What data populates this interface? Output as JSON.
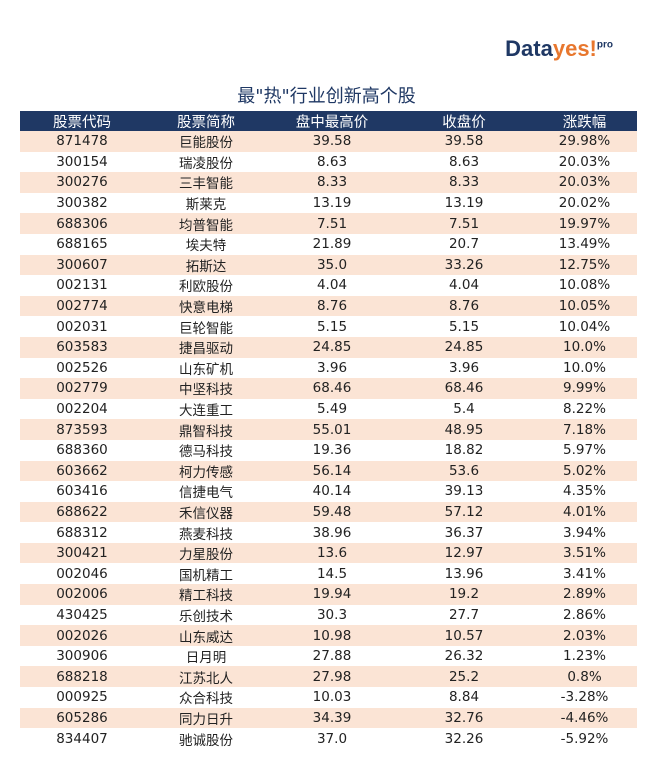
{
  "logo": {
    "brand": "Data",
    "accent": "yes!",
    "suffix": "pro"
  },
  "title": "最\"热\"行业创新高个股",
  "table": {
    "header": [
      "股票代码",
      "股票简称",
      "盘中最高价",
      "收盘价",
      "涨跌幅"
    ],
    "rows": [
      [
        "871478",
        "巨能股份",
        "39.58",
        "39.58",
        "29.98%"
      ],
      [
        "300154",
        "瑞凌股份",
        "8.63",
        "8.63",
        "20.03%"
      ],
      [
        "300276",
        "三丰智能",
        "8.33",
        "8.33",
        "20.03%"
      ],
      [
        "300382",
        "斯莱克",
        "13.19",
        "13.19",
        "20.02%"
      ],
      [
        "688306",
        "均普智能",
        "7.51",
        "7.51",
        "19.97%"
      ],
      [
        "688165",
        "埃夫特",
        "21.89",
        "20.7",
        "13.49%"
      ],
      [
        "300607",
        "拓斯达",
        "35.0",
        "33.26",
        "12.75%"
      ],
      [
        "002131",
        "利欧股份",
        "4.04",
        "4.04",
        "10.08%"
      ],
      [
        "002774",
        "快意电梯",
        "8.76",
        "8.76",
        "10.05%"
      ],
      [
        "002031",
        "巨轮智能",
        "5.15",
        "5.15",
        "10.04%"
      ],
      [
        "603583",
        "捷昌驱动",
        "24.85",
        "24.85",
        "10.0%"
      ],
      [
        "002526",
        "山东矿机",
        "3.96",
        "3.96",
        "10.0%"
      ],
      [
        "002779",
        "中坚科技",
        "68.46",
        "68.46",
        "9.99%"
      ],
      [
        "002204",
        "大连重工",
        "5.49",
        "5.4",
        "8.22%"
      ],
      [
        "873593",
        "鼎智科技",
        "55.01",
        "48.95",
        "7.18%"
      ],
      [
        "688360",
        "德马科技",
        "19.36",
        "18.82",
        "5.97%"
      ],
      [
        "603662",
        "柯力传感",
        "56.14",
        "53.6",
        "5.02%"
      ],
      [
        "603416",
        "信捷电气",
        "40.14",
        "39.13",
        "4.35%"
      ],
      [
        "688622",
        "禾信仪器",
        "59.48",
        "57.12",
        "4.01%"
      ],
      [
        "688312",
        "燕麦科技",
        "38.96",
        "36.37",
        "3.94%"
      ],
      [
        "300421",
        "力星股份",
        "13.6",
        "12.97",
        "3.51%"
      ],
      [
        "002046",
        "国机精工",
        "14.5",
        "13.96",
        "3.41%"
      ],
      [
        "002006",
        "精工科技",
        "19.94",
        "19.2",
        "2.89%"
      ],
      [
        "430425",
        "乐创技术",
        "30.3",
        "27.7",
        "2.86%"
      ],
      [
        "002026",
        "山东威达",
        "10.98",
        "10.57",
        "2.03%"
      ],
      [
        "300906",
        "日月明",
        "27.88",
        "26.32",
        "1.23%"
      ],
      [
        "688218",
        "江苏北人",
        "27.98",
        "25.2",
        "0.8%"
      ],
      [
        "000925",
        "众合科技",
        "10.03",
        "8.84",
        "-3.28%"
      ],
      [
        "605286",
        "同力日升",
        "34.39",
        "32.76",
        "-4.46%"
      ],
      [
        "834407",
        "驰诚股份",
        "37.0",
        "32.26",
        "-5.92%"
      ]
    ]
  }
}
